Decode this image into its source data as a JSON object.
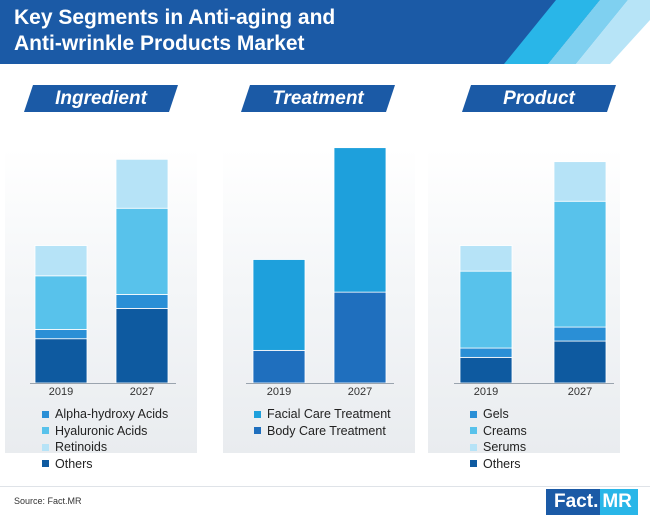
{
  "header": {
    "title_line1": "Key Segments in Anti-aging and",
    "title_line2": "Anti-wrinkle Products Market",
    "bg_color": "#1b5aa6",
    "stripe_colors": [
      "#29b6e8",
      "#7fd0f0",
      "#b7e4f7"
    ]
  },
  "chart_data": [
    {
      "type": "bar",
      "stacked": true,
      "title": "Ingredient",
      "categories": [
        "2019",
        "2027"
      ],
      "ylim": [
        0,
        100
      ],
      "series": [
        {
          "name": "Others",
          "color": "#0e5aa0",
          "values": [
            19,
            32
          ]
        },
        {
          "name": "Alpha-hydroxy Acids",
          "color": "#2a8fd6",
          "values": [
            4,
            6
          ]
        },
        {
          "name": "Hyaluronic Acids",
          "color": "#58c2eb",
          "values": [
            23,
            37
          ]
        },
        {
          "name": "Retinoids",
          "color": "#b6e3f7",
          "values": [
            13,
            21
          ]
        }
      ],
      "legend": [
        "Alpha-hydroxy Acids",
        "Hyaluronic Acids",
        "Retinoids",
        "Others"
      ],
      "legend_position": "bottom"
    },
    {
      "type": "bar",
      "stacked": true,
      "title": "Treatment",
      "categories": [
        "2019",
        "2027"
      ],
      "ylim": [
        0,
        100
      ],
      "series": [
        {
          "name": "Body Care Treatment",
          "color": "#1f6fbe",
          "values": [
            14,
            39
          ]
        },
        {
          "name": "Facial Care Treatment",
          "color": "#1ea0dc",
          "values": [
            39,
            62
          ]
        }
      ],
      "legend": [
        "Facial Care Treatment",
        "Body Care Treatment"
      ],
      "legend_position": "bottom"
    },
    {
      "type": "bar",
      "stacked": true,
      "title": "Product",
      "categories": [
        "2019",
        "2027"
      ],
      "ylim": [
        0,
        100
      ],
      "series": [
        {
          "name": "Others",
          "color": "#0e5aa0",
          "values": [
            11,
            18
          ]
        },
        {
          "name": "Gels",
          "color": "#2a8fd6",
          "values": [
            4,
            6
          ]
        },
        {
          "name": "Creams",
          "color": "#58c2eb",
          "values": [
            33,
            54
          ]
        },
        {
          "name": "Serums",
          "color": "#b6e3f7",
          "values": [
            11,
            17
          ]
        }
      ],
      "legend": [
        "Gels",
        "Creams",
        "Serums",
        "Others"
      ],
      "legend_position": "bottom"
    }
  ],
  "footer": {
    "source": "Source: Fact.MR",
    "logo_left": "Fact.",
    "logo_right": "MR"
  }
}
